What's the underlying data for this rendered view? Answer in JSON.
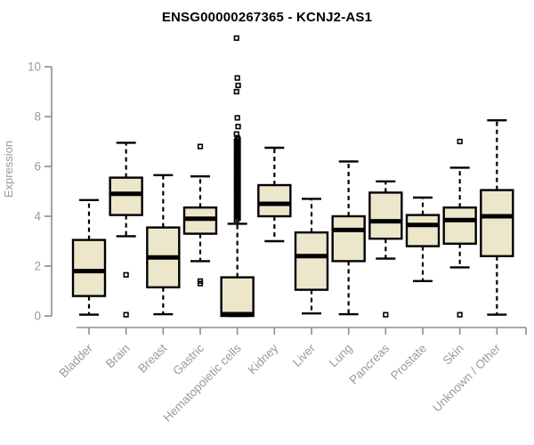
{
  "chart_data": {
    "type": "boxplot",
    "title": "ENSG00000267365 - KCNJ2-AS1",
    "ylabel": "Expression",
    "xlabel": "",
    "ylim": [
      0,
      11.3
    ],
    "yticks": [
      0,
      2,
      4,
      6,
      8,
      10
    ],
    "grid": false,
    "legend": "none",
    "x_tick_rotation_deg": 45,
    "categories": [
      "Bladder",
      "Brain",
      "Breast",
      "Gastric",
      "Hematopoietic cells",
      "Kidney",
      "Liver",
      "Lung",
      "Pancreas",
      "Prostate",
      "Skin",
      "Unknown / Other"
    ],
    "series": [
      {
        "name": "Bladder",
        "whisker_low": 0.05,
        "q1": 0.8,
        "median": 1.8,
        "q3": 3.05,
        "whisker_high": 4.65,
        "outliers": []
      },
      {
        "name": "Brain",
        "whisker_low": 3.2,
        "q1": 4.05,
        "median": 4.9,
        "q3": 5.55,
        "whisker_high": 6.95,
        "outliers": [
          1.65,
          0.05
        ]
      },
      {
        "name": "Breast",
        "whisker_low": 0.07,
        "q1": 1.15,
        "median": 2.35,
        "q3": 3.55,
        "whisker_high": 5.65,
        "outliers": []
      },
      {
        "name": "Gastric",
        "whisker_low": 2.2,
        "q1": 3.3,
        "median": 3.9,
        "q3": 4.35,
        "whisker_high": 5.6,
        "outliers": [
          6.8,
          1.4,
          1.3
        ]
      },
      {
        "name": "Hematopoietic cells",
        "whisker_low": 0.0,
        "q1": 0.0,
        "median": 0.07,
        "q3": 1.55,
        "whisker_high": 3.7,
        "outliers": [
          11.15,
          9.55,
          9.25,
          9.0,
          7.95,
          7.6,
          7.3
        ],
        "outlier_band": {
          "min": 3.8,
          "max": 7.15,
          "step": 0.07
        }
      },
      {
        "name": "Kidney",
        "whisker_low": 3.0,
        "q1": 4.0,
        "median": 4.5,
        "q3": 5.25,
        "whisker_high": 6.75,
        "outliers": []
      },
      {
        "name": "Liver",
        "whisker_low": 0.1,
        "q1": 1.05,
        "median": 2.4,
        "q3": 3.35,
        "whisker_high": 4.7,
        "outliers": []
      },
      {
        "name": "Lung",
        "whisker_low": 0.07,
        "q1": 2.2,
        "median": 3.45,
        "q3": 4.0,
        "whisker_high": 6.2,
        "outliers": []
      },
      {
        "name": "Pancreas",
        "whisker_low": 2.3,
        "q1": 3.1,
        "median": 3.8,
        "q3": 4.95,
        "whisker_high": 5.4,
        "outliers": [
          0.05
        ]
      },
      {
        "name": "Prostate",
        "whisker_low": 1.4,
        "q1": 2.8,
        "median": 3.65,
        "q3": 4.05,
        "whisker_high": 4.75,
        "outliers": []
      },
      {
        "name": "Skin",
        "whisker_low": 1.95,
        "q1": 2.9,
        "median": 3.85,
        "q3": 4.35,
        "whisker_high": 5.95,
        "outliers": [
          7.0,
          0.05
        ]
      },
      {
        "name": "Unknown / Other",
        "whisker_low": 0.05,
        "q1": 2.4,
        "median": 4.0,
        "q3": 5.05,
        "whisker_high": 7.85,
        "outliers": []
      }
    ],
    "colors": {
      "box_fill": "#ece6cb",
      "box_stroke": "#000000",
      "median": "#000000",
      "whisker": "#000000",
      "outlier": "#000000",
      "axis": "#8c8c8c",
      "tick_label": "#9a9a9a",
      "title": "#000000",
      "background": "#ffffff"
    }
  }
}
